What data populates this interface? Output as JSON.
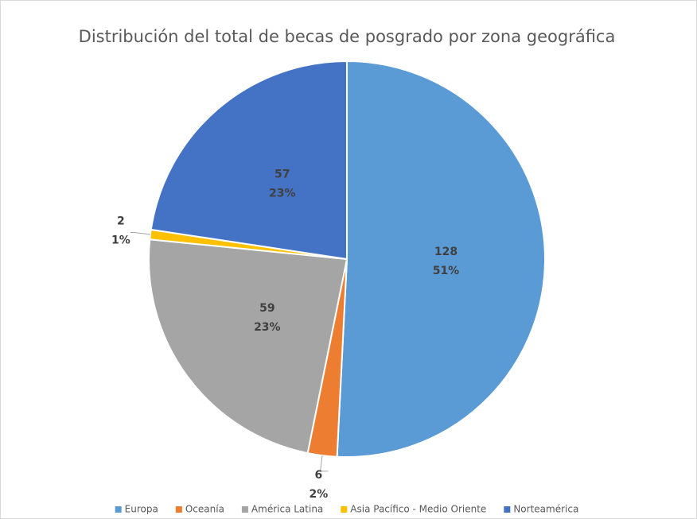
{
  "chart_data": {
    "type": "pie",
    "title": "Distribución del total de becas de posgrado por zona geográfica",
    "categories": [
      "Europa",
      "Oceanía",
      "América Latina",
      "Asia Pacífico - Medio Oriente",
      "Norteamérica"
    ],
    "values": [
      128,
      6,
      59,
      2,
      57
    ],
    "percent_labels": [
      "51%",
      "2%",
      "23%",
      "1%",
      "23%"
    ],
    "colors": [
      "#5b9bd5",
      "#ed7d31",
      "#a5a5a5",
      "#ffc000",
      "#4472c4"
    ],
    "legend": "bottom"
  }
}
